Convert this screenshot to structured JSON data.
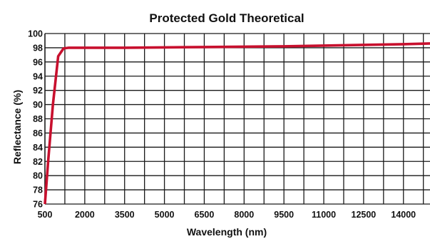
{
  "chart_data": {
    "type": "line",
    "title": "Protected Gold Theoretical",
    "xlabel": "Wavelength (nm)",
    "ylabel": "Reflectance (%)",
    "xlim": [
      500,
      15000
    ],
    "ylim": [
      76,
      100
    ],
    "x_ticks": [
      500,
      2000,
      3500,
      5000,
      6500,
      8000,
      9500,
      11000,
      12500,
      14000
    ],
    "y_ticks": [
      76,
      78,
      80,
      82,
      84,
      86,
      88,
      90,
      92,
      94,
      96,
      98,
      100
    ],
    "grid": true,
    "series": [
      {
        "color": "#c8102e",
        "x": [
          500,
          620,
          800,
          1000,
          1200,
          1400,
          2000,
          3500,
          5000,
          6500,
          8000,
          9500,
          11000,
          12500,
          14000,
          15000
        ],
        "y": [
          76,
          82,
          90,
          96.8,
          97.9,
          98,
          98,
          98,
          98.05,
          98.1,
          98.15,
          98.2,
          98.3,
          98.4,
          98.5,
          98.6
        ]
      }
    ]
  }
}
